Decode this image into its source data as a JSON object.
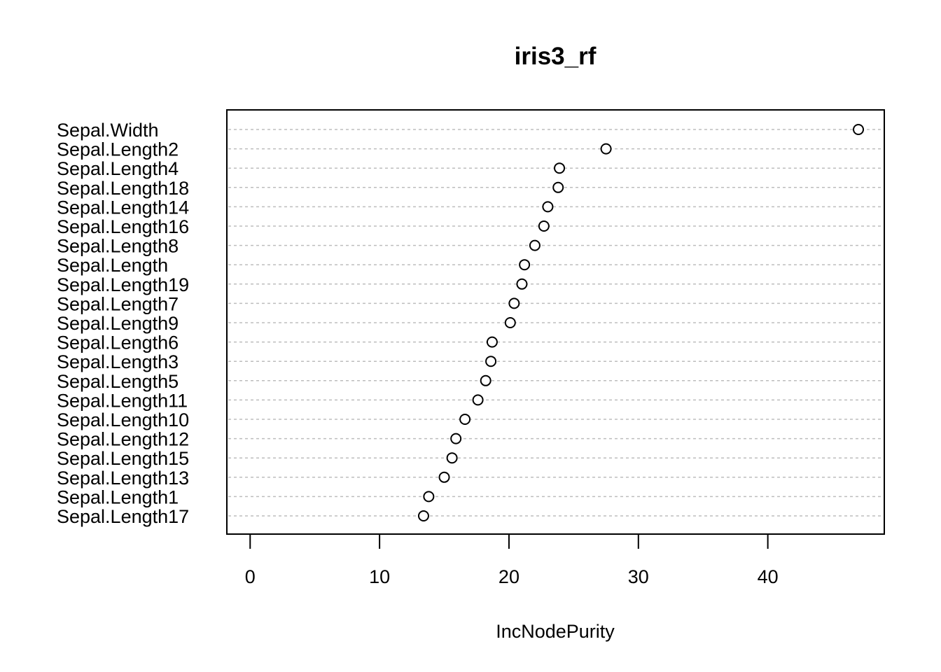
{
  "chart_data": {
    "type": "scatter",
    "title": "iris3_rf",
    "xlabel": "IncNodePurity",
    "ylabel": "",
    "xlim": [
      -1.8,
      49
    ],
    "xticks": [
      0,
      10,
      20,
      30,
      40
    ],
    "xtick_labels": [
      "0",
      "10",
      "20",
      "30",
      "40"
    ],
    "grid": "dotted horizontal lines at each variable",
    "categories": [
      "Sepal.Width",
      "Sepal.Length2",
      "Sepal.Length4",
      "Sepal.Length18",
      "Sepal.Length14",
      "Sepal.Length16",
      "Sepal.Length8",
      "Sepal.Length",
      "Sepal.Length19",
      "Sepal.Length7",
      "Sepal.Length9",
      "Sepal.Length6",
      "Sepal.Length3",
      "Sepal.Length5",
      "Sepal.Length11",
      "Sepal.Length10",
      "Sepal.Length12",
      "Sepal.Length15",
      "Sepal.Length13",
      "Sepal.Length1",
      "Sepal.Length17"
    ],
    "values": [
      47.0,
      27.5,
      23.9,
      23.8,
      23.0,
      22.7,
      22.0,
      21.2,
      21.0,
      20.4,
      20.1,
      18.7,
      18.6,
      18.2,
      17.6,
      16.6,
      15.9,
      15.6,
      15.0,
      13.8,
      13.4
    ]
  }
}
